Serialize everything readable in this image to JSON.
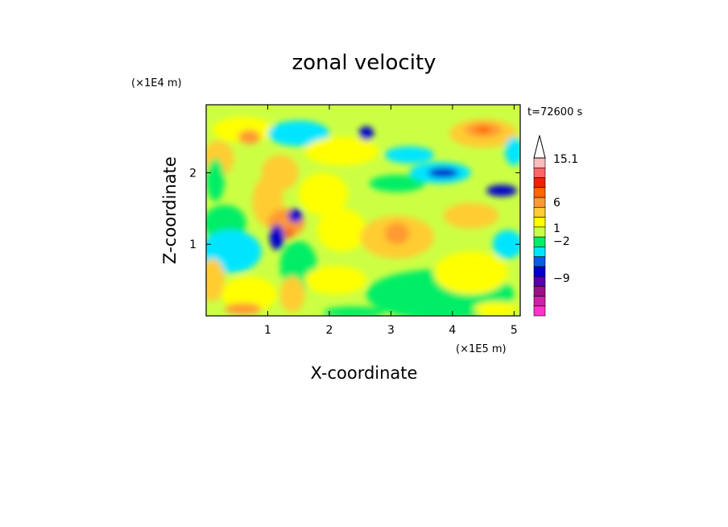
{
  "chart_data": {
    "type": "heatmap",
    "title": "zonal velocity",
    "xlabel": "X-coordinate",
    "ylabel": "Z-coordinate",
    "x_scale_note": "(×1E5 m)",
    "y_scale_note": "(×1E4 m)",
    "time_label": "t=72600 s",
    "xlim": [
      0,
      5.1
    ],
    "ylim": [
      0,
      2.95
    ],
    "x_ticks": [
      "1",
      "2",
      "3",
      "4",
      "5"
    ],
    "x_tick_values": [
      1,
      2,
      3,
      4,
      5
    ],
    "y_ticks": [
      "1",
      "2"
    ],
    "y_tick_values": [
      1,
      2
    ],
    "colorbar": {
      "colors": [
        "#ff33cc",
        "#cc22aa",
        "#991188",
        "#5500aa",
        "#0000cc",
        "#0a5ce6",
        "#00e5ff",
        "#00ee66",
        "#ccff44",
        "#ffff00",
        "#ffcc33",
        "#ff9933",
        "#ff6600",
        "#ee2200",
        "#ff6666",
        "#ffbbbb"
      ],
      "labels": [
        "15.1",
        "6",
        "1",
        "−2",
        "−9"
      ],
      "extend": "max"
    },
    "field": {
      "background": "#ccff44",
      "blobs": [
        {
          "x": 0.6,
          "z": 2.6,
          "rx": 0.5,
          "rz": 0.18,
          "c": "#ffff00"
        },
        {
          "x": 0.2,
          "z": 2.2,
          "rx": 0.25,
          "rz": 0.25,
          "c": "#ffcc33"
        },
        {
          "x": 0.7,
          "z": 2.5,
          "rx": 0.18,
          "rz": 0.1,
          "c": "#ff9933"
        },
        {
          "x": 0.15,
          "z": 1.9,
          "rx": 0.15,
          "rz": 0.3,
          "c": "#00ee66"
        },
        {
          "x": 0.3,
          "z": 1.3,
          "rx": 0.35,
          "rz": 0.25,
          "c": "#00ee66"
        },
        {
          "x": 0.4,
          "z": 0.9,
          "rx": 0.5,
          "rz": 0.3,
          "c": "#00e5ff"
        },
        {
          "x": 0.1,
          "z": 0.5,
          "rx": 0.2,
          "rz": 0.3,
          "c": "#ffcc33"
        },
        {
          "x": 0.7,
          "z": 0.3,
          "rx": 0.45,
          "rz": 0.25,
          "c": "#ffff00"
        },
        {
          "x": 0.6,
          "z": 0.1,
          "rx": 0.3,
          "rz": 0.08,
          "c": "#ff9933"
        },
        {
          "x": 1.4,
          "z": 2.6,
          "rx": 0.35,
          "rz": 0.07,
          "c": "#0000cc"
        },
        {
          "x": 1.5,
          "z": 2.55,
          "rx": 0.5,
          "rz": 0.18,
          "c": "#00e5ff"
        },
        {
          "x": 2.6,
          "z": 2.55,
          "rx": 0.12,
          "rz": 0.1,
          "c": "#0000cc"
        },
        {
          "x": 2.2,
          "z": 2.3,
          "rx": 0.6,
          "rz": 0.2,
          "c": "#ffff00"
        },
        {
          "x": 1.2,
          "z": 2.0,
          "rx": 0.3,
          "rz": 0.25,
          "c": "#ffcc33"
        },
        {
          "x": 1.0,
          "z": 1.6,
          "rx": 0.25,
          "rz": 0.35,
          "c": "#ffcc33"
        },
        {
          "x": 1.3,
          "z": 1.3,
          "rx": 0.3,
          "rz": 0.2,
          "c": "#ff9933"
        },
        {
          "x": 1.15,
          "z": 1.1,
          "rx": 0.12,
          "rz": 0.18,
          "c": "#0000cc"
        },
        {
          "x": 1.45,
          "z": 1.4,
          "rx": 0.12,
          "rz": 0.1,
          "c": "#0000cc"
        },
        {
          "x": 1.35,
          "z": 1.15,
          "rx": 0.04,
          "rz": 0.08,
          "c": "#ee2200"
        },
        {
          "x": 1.5,
          "z": 0.7,
          "rx": 0.3,
          "rz": 0.35,
          "c": "#00ee66"
        },
        {
          "x": 1.4,
          "z": 0.3,
          "rx": 0.2,
          "rz": 0.25,
          "c": "#ffcc33"
        },
        {
          "x": 1.9,
          "z": 1.7,
          "rx": 0.4,
          "rz": 0.3,
          "c": "#ffff00"
        },
        {
          "x": 2.2,
          "z": 1.2,
          "rx": 0.4,
          "rz": 0.3,
          "c": "#ffff00"
        },
        {
          "x": 3.1,
          "z": 1.1,
          "rx": 0.6,
          "rz": 0.3,
          "c": "#ffcc33"
        },
        {
          "x": 3.1,
          "z": 1.15,
          "rx": 0.2,
          "rz": 0.15,
          "c": "#ff9933"
        },
        {
          "x": 2.1,
          "z": 0.5,
          "rx": 0.5,
          "rz": 0.2,
          "c": "#ffff00"
        },
        {
          "x": 2.4,
          "z": 0.05,
          "rx": 0.5,
          "rz": 0.08,
          "c": "#00ee66"
        },
        {
          "x": 3.8,
          "z": 0.3,
          "rx": 1.2,
          "rz": 0.35,
          "c": "#00ee66"
        },
        {
          "x": 4.3,
          "z": 0.6,
          "rx": 0.6,
          "rz": 0.3,
          "c": "#ffff00"
        },
        {
          "x": 3.1,
          "z": 1.85,
          "rx": 0.45,
          "rz": 0.12,
          "c": "#00ee66"
        },
        {
          "x": 3.3,
          "z": 2.25,
          "rx": 0.4,
          "rz": 0.12,
          "c": "#00e5ff"
        },
        {
          "x": 3.8,
          "z": 2.0,
          "rx": 0.5,
          "rz": 0.15,
          "c": "#00e5ff"
        },
        {
          "x": 3.85,
          "z": 2.0,
          "rx": 0.25,
          "rz": 0.07,
          "c": "#0000cc"
        },
        {
          "x": 4.5,
          "z": 2.55,
          "rx": 0.55,
          "rz": 0.2,
          "c": "#ffcc33"
        },
        {
          "x": 4.5,
          "z": 2.6,
          "rx": 0.3,
          "rz": 0.1,
          "c": "#ff9933"
        },
        {
          "x": 4.5,
          "z": 2.6,
          "rx": 0.12,
          "rz": 0.05,
          "c": "#ff6600"
        },
        {
          "x": 4.8,
          "z": 1.75,
          "rx": 0.25,
          "rz": 0.08,
          "c": "#0000cc"
        },
        {
          "x": 4.3,
          "z": 1.4,
          "rx": 0.45,
          "rz": 0.18,
          "c": "#ffcc33"
        },
        {
          "x": 4.9,
          "z": 1.0,
          "rx": 0.25,
          "rz": 0.2,
          "c": "#00e5ff"
        },
        {
          "x": 5.0,
          "z": 2.3,
          "rx": 0.15,
          "rz": 0.2,
          "c": "#00e5ff"
        },
        {
          "x": 4.7,
          "z": 0.1,
          "rx": 0.35,
          "rz": 0.1,
          "c": "#ffff00"
        }
      ]
    }
  }
}
